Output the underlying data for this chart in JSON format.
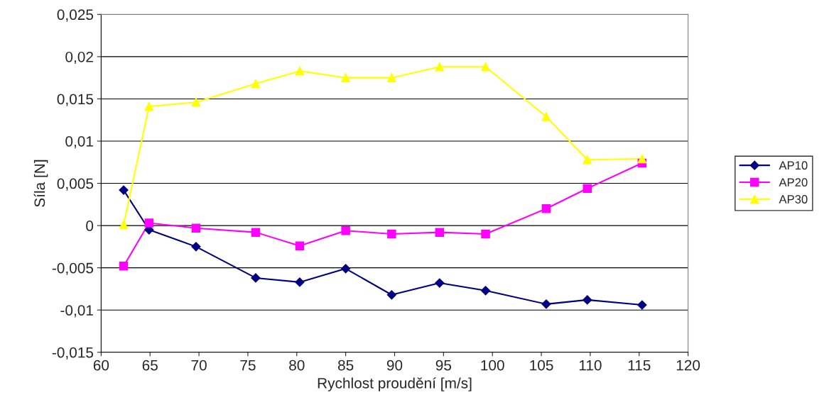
{
  "chart_data": {
    "type": "line",
    "xlabel": "Rychlost proudění [m/s]",
    "ylabel": "Síla [N]",
    "x": [
      62.3,
      64.9,
      69.7,
      75.8,
      80.3,
      85.0,
      89.7,
      94.6,
      99.3,
      105.5,
      109.7,
      115.3
    ],
    "series": [
      {
        "name": "AP10",
        "color": "#000080",
        "marker": "diamond",
        "values": [
          0.0042,
          -0.0005,
          -0.0025,
          -0.0062,
          -0.0067,
          -0.0051,
          -0.0082,
          -0.0068,
          -0.0077,
          -0.0093,
          -0.0088,
          -0.0094
        ]
      },
      {
        "name": "AP20",
        "color": "#ff00ff",
        "marker": "square",
        "values": [
          -0.0048,
          0.0003,
          -0.0003,
          -0.0008,
          -0.0024,
          -0.0006,
          -0.001,
          -0.0008,
          -0.001,
          0.002,
          0.0044,
          0.0074
        ]
      },
      {
        "name": "AP30",
        "color": "#ffff00",
        "marker": "triangle",
        "values": [
          0.0001,
          0.0141,
          0.0146,
          0.0168,
          0.0183,
          0.0175,
          0.0175,
          0.0188,
          0.0188,
          0.0129,
          0.0078,
          0.0079
        ]
      }
    ],
    "xlim": [
      60,
      120
    ],
    "xticks": [
      60,
      65,
      70,
      75,
      80,
      85,
      90,
      95,
      100,
      105,
      110,
      115,
      120
    ],
    "ylim": [
      -0.015,
      0.025
    ],
    "yticks": [
      {
        "value": -0.015,
        "label": "-0,015"
      },
      {
        "value": -0.01,
        "label": "-0,01"
      },
      {
        "value": -0.005,
        "label": "-0,005"
      },
      {
        "value": 0,
        "label": "0"
      },
      {
        "value": 0.005,
        "label": "0,005"
      },
      {
        "value": 0.01,
        "label": "0,01"
      },
      {
        "value": 0.015,
        "label": "0,015"
      },
      {
        "value": 0.02,
        "label": "0,02"
      },
      {
        "value": 0.025,
        "label": "0,025"
      }
    ],
    "grid": "y",
    "legend": "right",
    "line_style": "solid"
  }
}
